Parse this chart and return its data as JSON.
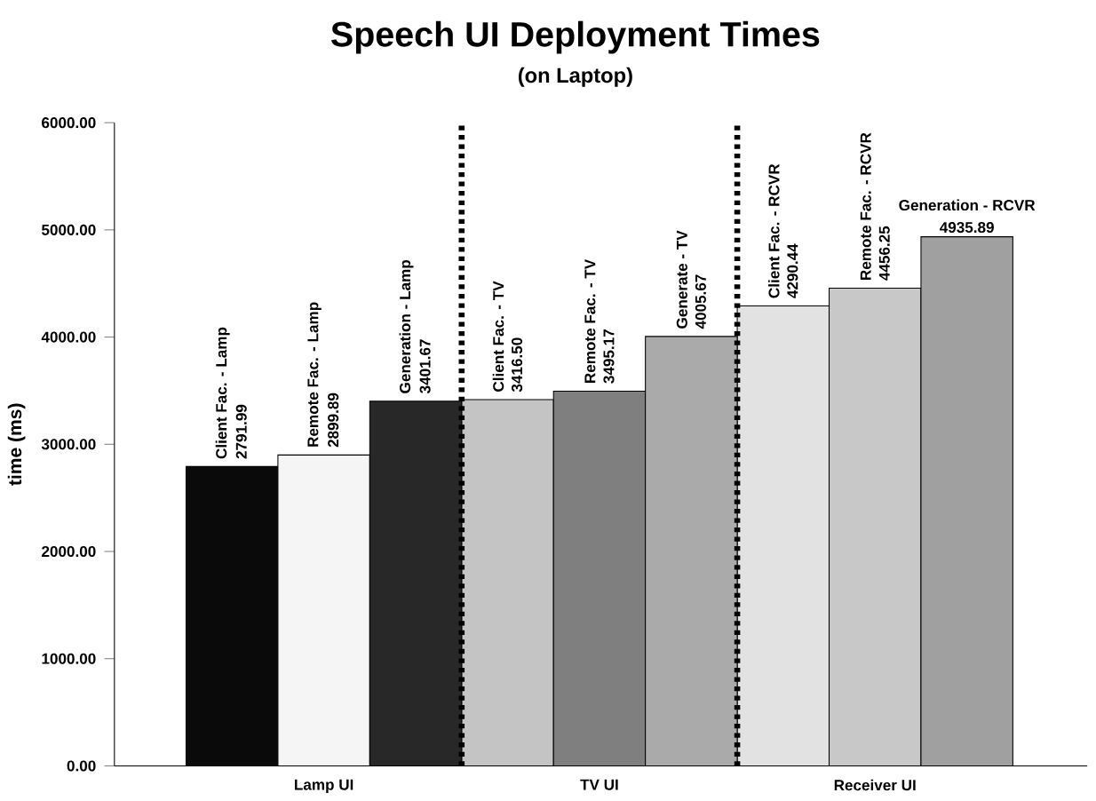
{
  "chart_data": {
    "type": "bar",
    "title": "Speech UI Deployment Times",
    "subtitle": "(on Laptop)",
    "ylabel": "time (ms)",
    "categories": [
      "Lamp UI",
      "TV UI",
      "Receiver UI"
    ],
    "series": [
      {
        "values": [
          2791.99,
          3416.5,
          4290.44
        ],
        "colors": [
          "#0a0a0a",
          "#c4c4c4",
          "#e2e2e2"
        ],
        "value_labels": [
          "2791.99",
          "3416.50",
          "4290.44"
        ]
      },
      {
        "values": [
          2899.89,
          3495.17,
          4456.25
        ],
        "colors": [
          "#f5f5f5",
          "#7f7f7f",
          "#c8c8c8"
        ],
        "value_labels": [
          "2899.89",
          "3495.17",
          "4456.25"
        ]
      },
      {
        "values": [
          3401.67,
          4005.67,
          4935.89
        ],
        "colors": [
          "#282828",
          "#aaaaaa",
          "#a0a0a0"
        ],
        "value_labels": [
          "3401.67",
          "4005.67",
          "4935.89"
        ]
      }
    ],
    "annotations": [
      "Client Fac. - Lamp",
      "Remote Fac. - Lamp",
      "Generation - Lamp",
      "Client Fac. - TV",
      "Remote Fac. - TV",
      "Generate - TV",
      "Client Fac. - RCVR",
      "Remote Fac. - RCVR",
      "Generation - RCVR"
    ],
    "ylim": [
      0,
      6000
    ],
    "yticks": [
      {
        "value": 0,
        "label": "0.00"
      },
      {
        "value": 1000,
        "label": "1000.00"
      },
      {
        "value": 2000,
        "label": "2000.00"
      },
      {
        "value": 3000,
        "label": "3000.00"
      },
      {
        "value": 4000,
        "label": "4000.00"
      },
      {
        "value": 5000,
        "label": "5000.00"
      },
      {
        "value": 6000,
        "label": "6000.00"
      }
    ],
    "grid": false
  }
}
